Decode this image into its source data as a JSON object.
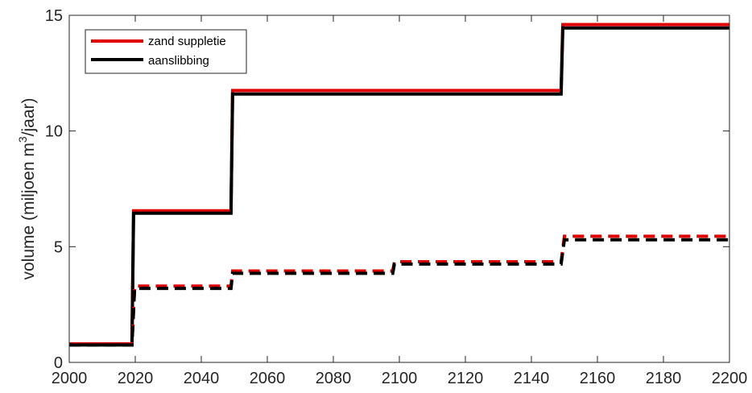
{
  "chart_data": {
    "type": "line",
    "title": "",
    "xlabel": "",
    "ylabel": {
      "prefix": "volume (miljoen m",
      "superscript": "3",
      "suffix": "/jaar)"
    },
    "xlim": [
      2000,
      2200
    ],
    "ylim": [
      0,
      15
    ],
    "xticks": [
      2000,
      2020,
      2040,
      2060,
      2080,
      2100,
      2120,
      2140,
      2160,
      2180,
      2200
    ],
    "yticks": [
      0,
      5,
      10,
      15
    ],
    "grid": false,
    "legend": {
      "placement": "top-left",
      "entries": [
        "zand suppletie",
        "aanslibbing"
      ]
    },
    "series": [
      {
        "name": "zand suppletie",
        "color": "#e00000",
        "style": "solid",
        "x": [
          2000,
          2019,
          2019.5,
          2049,
          2049.5,
          2149,
          2149.5,
          2200
        ],
        "y": [
          0.8,
          0.8,
          6.55,
          6.55,
          11.75,
          11.75,
          14.6,
          14.6
        ]
      },
      {
        "name": "aanslibbing",
        "color": "#000000",
        "style": "solid",
        "x": [
          2000,
          2019,
          2019.5,
          2049,
          2049.5,
          2149,
          2149.5,
          2200
        ],
        "y": [
          0.75,
          0.75,
          6.45,
          6.45,
          11.6,
          11.6,
          14.45,
          14.45
        ]
      },
      {
        "color": "#e00000",
        "style": "dashed",
        "x": [
          2000,
          2019,
          2019.8,
          2049,
          2049.5,
          2098,
          2098.5,
          2149,
          2150,
          2200
        ],
        "y": [
          0.8,
          0.8,
          3.3,
          3.3,
          3.95,
          3.95,
          4.35,
          4.35,
          5.45,
          5.45
        ]
      },
      {
        "color": "#000000",
        "style": "dashed",
        "x": [
          2000,
          2019,
          2019.8,
          2049,
          2049.5,
          2098,
          2098.5,
          2149,
          2150,
          2200
        ],
        "y": [
          0.75,
          0.75,
          3.2,
          3.2,
          3.85,
          3.85,
          4.25,
          4.25,
          5.3,
          5.3
        ]
      }
    ]
  }
}
